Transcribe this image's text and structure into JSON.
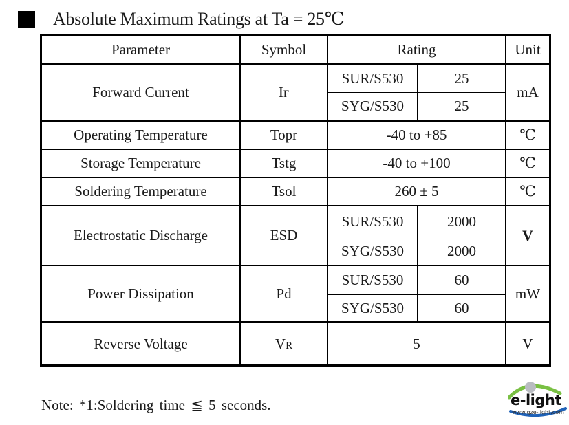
{
  "heading": {
    "title": "Absolute Maximum Ratings at Ta = 25℃"
  },
  "table": {
    "headers": {
      "parameter": "Parameter",
      "symbol": "Symbol",
      "rating": "Rating",
      "unit": "Unit"
    },
    "rows": {
      "forward_current": {
        "parameter": "Forward  Current",
        "symbol_main": "I",
        "symbol_sub": "F",
        "sub": [
          {
            "model": "SUR/S530",
            "value": "25"
          },
          {
            "model": "SYG/S530",
            "value": "25"
          }
        ],
        "unit": "mA"
      },
      "operating_temp": {
        "parameter": "Operating Temperature",
        "symbol": "Topr",
        "rating": "-40 to +85",
        "unit": "℃"
      },
      "storage_temp": {
        "parameter": "Storage Temperature",
        "symbol": "Tstg",
        "rating": "-40 to +100",
        "unit": "℃"
      },
      "soldering_temp": {
        "parameter": "Soldering Temperature",
        "symbol": "Tsol",
        "rating": "260 ± 5",
        "unit": "℃"
      },
      "esd": {
        "parameter": "Electrostatic Discharge",
        "symbol": "ESD",
        "sub": [
          {
            "model": "SUR/S530",
            "value": "2000"
          },
          {
            "model": "SYG/S530",
            "value": "2000"
          }
        ],
        "unit": "V"
      },
      "power": {
        "parameter": "Power Dissipation",
        "symbol": "Pd",
        "sub": [
          {
            "model": "SUR/S530",
            "value": "60"
          },
          {
            "model": "SYG/S530",
            "value": "60"
          }
        ],
        "unit": "mW"
      },
      "reverse_voltage": {
        "parameter": "Reverse Voltage",
        "symbol_main": "V",
        "symbol_sub": "R",
        "rating": "5",
        "unit": "V"
      }
    }
  },
  "note": "Note: *1:Soldering  time  ≦  5 seconds.",
  "logo": {
    "word": "e-light",
    "url": "www.gze-light.com",
    "colors": {
      "green": "#79c043",
      "blue": "#1f62b8",
      "grey": "#b9bcc1"
    }
  }
}
